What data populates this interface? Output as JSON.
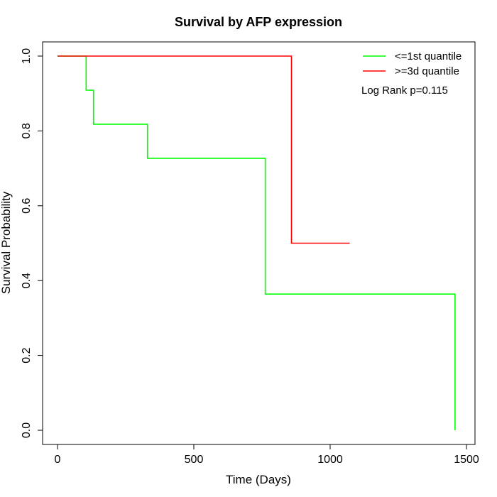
{
  "chart_data": {
    "type": "line",
    "title": "Survival by AFP expression",
    "xlabel": "Time (Days)",
    "ylabel": "Survival Probability",
    "xlim": [
      0,
      1500
    ],
    "ylim": [
      0,
      1
    ],
    "xticks": [
      0,
      500,
      1000,
      1500
    ],
    "yticks": [
      0.0,
      0.2,
      0.4,
      0.6,
      0.8,
      1.0
    ],
    "ytick_labels": [
      "0.0",
      "0.2",
      "0.4",
      "0.6",
      "0.8",
      "1.0"
    ],
    "grid": false,
    "legend_position": "top-right",
    "series": [
      {
        "name": "<=1st quantile",
        "color": "#00ff00",
        "step": true,
        "x": [
          0,
          105,
          105,
          132,
          132,
          330,
          330,
          762,
          762,
          1458,
          1458
        ],
        "y": [
          1.0,
          1.0,
          0.909,
          0.909,
          0.818,
          0.818,
          0.727,
          0.727,
          0.364,
          0.364,
          0.0
        ]
      },
      {
        "name": ">=3d quantile",
        "color": "#ff0000",
        "step": true,
        "x": [
          0,
          858,
          858,
          1072
        ],
        "y": [
          1.0,
          1.0,
          0.5,
          0.5
        ]
      }
    ],
    "annotation": "Log Rank p=0.115"
  }
}
